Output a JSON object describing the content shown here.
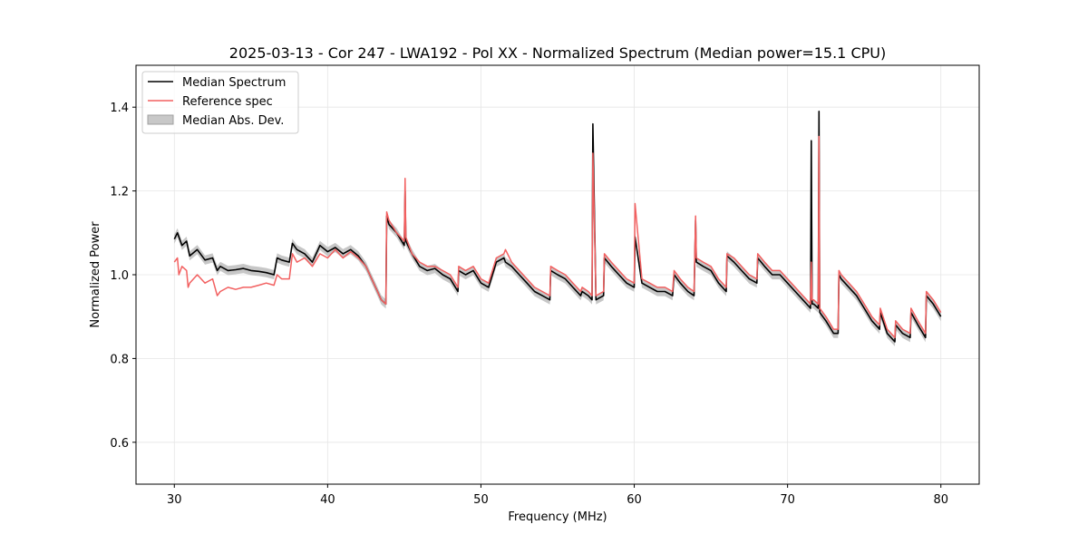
{
  "chart_data": {
    "type": "line",
    "title": "2025-03-13 - Cor 247 - LWA192 - Pol XX - Normalized Spectrum (Median power=15.1 CPU)",
    "xlabel": "Frequency (MHz)",
    "ylabel": "Normalized Power",
    "xlim": [
      27.5,
      82.5
    ],
    "ylim": [
      0.5,
      1.5
    ],
    "xticks": [
      30,
      40,
      50,
      60,
      70,
      80
    ],
    "yticks": [
      0.6,
      0.8,
      1.0,
      1.2,
      1.4
    ],
    "xtick_labels": [
      "30",
      "40",
      "50",
      "60",
      "70",
      "80"
    ],
    "ytick_labels": [
      "0.6",
      "0.8",
      "1.0",
      "1.2",
      "1.4"
    ],
    "grid": true,
    "legend_position": "top-left",
    "colors": {
      "median": "#000000",
      "reference": "#f26060",
      "mad_fill": "#bdbdbd"
    },
    "legend": [
      {
        "label": "Median Spectrum",
        "kind": "line",
        "color": "#000000"
      },
      {
        "label": "Reference spec",
        "kind": "line",
        "color": "#f26060"
      },
      {
        "label": "Median Abs. Dev.",
        "kind": "patch",
        "color": "#c8c8c8"
      }
    ],
    "mad": 0.011,
    "series": [
      {
        "name": "Median Spectrum",
        "x": [
          30.0,
          30.2,
          30.5,
          30.8,
          31.0,
          31.5,
          32.0,
          32.5,
          32.8,
          33.0,
          33.5,
          34.0,
          34.5,
          35.0,
          35.5,
          36.0,
          36.5,
          36.7,
          37.0,
          37.5,
          37.7,
          38.0,
          38.5,
          39.0,
          39.5,
          40.0,
          40.5,
          41.0,
          41.5,
          42.0,
          42.5,
          43.0,
          43.5,
          43.8,
          43.85,
          44.0,
          44.5,
          45.0,
          45.05,
          45.1,
          45.5,
          46.0,
          46.5,
          47.0,
          47.5,
          48.0,
          48.5,
          48.55,
          49.0,
          49.5,
          50.0,
          50.5,
          51.0,
          51.5,
          51.6,
          52.0,
          52.5,
          53.0,
          53.5,
          54.0,
          54.5,
          54.55,
          55.0,
          55.5,
          56.0,
          56.5,
          56.6,
          57.0,
          57.25,
          57.3,
          57.5,
          58.0,
          58.05,
          58.5,
          59.0,
          59.5,
          60.0,
          60.05,
          60.5,
          61.0,
          61.5,
          62.0,
          62.5,
          62.6,
          63.0,
          63.5,
          63.9,
          64.0,
          64.05,
          64.5,
          65.0,
          65.5,
          66.0,
          66.05,
          66.5,
          67.0,
          67.5,
          68.0,
          68.05,
          68.5,
          69.0,
          69.5,
          70.0,
          70.5,
          71.0,
          71.5,
          71.55,
          71.6,
          71.7,
          72.0,
          72.05,
          72.1,
          72.5,
          73.0,
          73.3,
          73.35,
          73.5,
          74.0,
          74.5,
          75.0,
          75.5,
          76.0,
          76.05,
          76.5,
          77.0,
          77.05,
          77.5,
          78.0,
          78.05,
          78.5,
          79.0,
          79.05,
          79.5,
          80.0
        ],
        "y": [
          1.085,
          1.1,
          1.07,
          1.08,
          1.045,
          1.06,
          1.035,
          1.04,
          1.01,
          1.02,
          1.01,
          1.012,
          1.015,
          1.01,
          1.008,
          1.005,
          1.0,
          1.04,
          1.035,
          1.03,
          1.075,
          1.06,
          1.05,
          1.03,
          1.07,
          1.055,
          1.065,
          1.05,
          1.06,
          1.045,
          1.02,
          0.98,
          0.94,
          0.93,
          1.14,
          1.12,
          1.1,
          1.07,
          1.2,
          1.08,
          1.05,
          1.02,
          1.01,
          1.015,
          1.0,
          0.99,
          0.96,
          1.01,
          1.0,
          1.01,
          0.98,
          0.97,
          1.03,
          1.04,
          1.03,
          1.02,
          1.0,
          0.98,
          0.96,
          0.95,
          0.94,
          1.01,
          1.0,
          0.99,
          0.97,
          0.95,
          0.96,
          0.95,
          0.94,
          1.36,
          0.94,
          0.95,
          1.04,
          1.02,
          1.0,
          0.98,
          0.97,
          1.09,
          0.98,
          0.97,
          0.96,
          0.96,
          0.95,
          1.0,
          0.98,
          0.96,
          0.95,
          1.13,
          1.03,
          1.02,
          1.01,
          0.98,
          0.96,
          1.045,
          1.03,
          1.01,
          0.99,
          0.98,
          1.04,
          1.02,
          1.0,
          1.0,
          0.98,
          0.96,
          0.94,
          0.92,
          1.32,
          0.93,
          0.93,
          0.92,
          1.39,
          0.91,
          0.89,
          0.86,
          0.86,
          1.0,
          0.99,
          0.97,
          0.95,
          0.92,
          0.89,
          0.87,
          0.91,
          0.86,
          0.84,
          0.88,
          0.86,
          0.85,
          0.91,
          0.88,
          0.85,
          0.95,
          0.93,
          0.9
        ]
      },
      {
        "name": "Reference spec",
        "x": [
          30.0,
          30.2,
          30.3,
          30.5,
          30.8,
          30.9,
          31.0,
          31.5,
          32.0,
          32.5,
          32.8,
          33.0,
          33.5,
          34.0,
          34.5,
          35.0,
          35.5,
          36.0,
          36.5,
          36.7,
          37.0,
          37.5,
          37.7,
          38.0,
          38.5,
          39.0,
          39.5,
          40.0,
          40.5,
          41.0,
          41.5,
          42.0,
          42.5,
          43.0,
          43.5,
          43.8,
          43.85,
          44.0,
          44.5,
          45.0,
          45.05,
          45.1,
          45.5,
          46.0,
          46.5,
          47.0,
          47.5,
          48.0,
          48.5,
          48.55,
          49.0,
          49.5,
          50.0,
          50.5,
          51.0,
          51.5,
          51.6,
          52.0,
          52.5,
          53.0,
          53.5,
          54.0,
          54.5,
          54.55,
          55.0,
          55.5,
          56.0,
          56.5,
          56.6,
          57.0,
          57.25,
          57.3,
          57.5,
          58.0,
          58.05,
          58.5,
          59.0,
          59.5,
          60.0,
          60.05,
          60.5,
          61.0,
          61.5,
          62.0,
          62.5,
          62.6,
          63.0,
          63.5,
          63.9,
          64.0,
          64.05,
          64.5,
          65.0,
          65.5,
          66.0,
          66.05,
          66.5,
          67.0,
          67.5,
          68.0,
          68.05,
          68.5,
          69.0,
          69.5,
          70.0,
          70.5,
          71.0,
          71.5,
          71.55,
          71.6,
          71.7,
          72.0,
          72.05,
          72.1,
          72.5,
          73.0,
          73.3,
          73.35,
          73.5,
          74.0,
          74.5,
          75.0,
          75.5,
          76.0,
          76.05,
          76.5,
          77.0,
          77.05,
          77.5,
          78.0,
          78.05,
          78.5,
          79.0,
          79.05,
          79.5,
          80.0
        ],
        "y": [
          1.03,
          1.04,
          1.0,
          1.02,
          1.01,
          0.97,
          0.98,
          1.0,
          0.98,
          0.99,
          0.95,
          0.96,
          0.97,
          0.965,
          0.97,
          0.97,
          0.975,
          0.98,
          0.975,
          1.0,
          0.99,
          0.99,
          1.05,
          1.03,
          1.04,
          1.02,
          1.05,
          1.04,
          1.06,
          1.04,
          1.055,
          1.04,
          1.02,
          0.98,
          0.94,
          0.93,
          1.15,
          1.13,
          1.1,
          1.08,
          1.23,
          1.09,
          1.05,
          1.03,
          1.02,
          1.02,
          1.01,
          1.0,
          0.97,
          1.02,
          1.01,
          1.02,
          0.99,
          0.98,
          1.04,
          1.05,
          1.06,
          1.03,
          1.01,
          0.99,
          0.97,
          0.96,
          0.95,
          1.02,
          1.01,
          1.0,
          0.98,
          0.96,
          0.97,
          0.96,
          0.95,
          1.29,
          0.95,
          0.96,
          1.05,
          1.03,
          1.01,
          0.99,
          0.98,
          1.17,
          0.99,
          0.98,
          0.97,
          0.97,
          0.96,
          1.01,
          0.99,
          0.97,
          0.96,
          1.14,
          1.04,
          1.03,
          1.02,
          0.99,
          0.97,
          1.05,
          1.04,
          1.02,
          1.0,
          0.99,
          1.05,
          1.03,
          1.01,
          1.01,
          0.99,
          0.97,
          0.95,
          0.93,
          1.03,
          0.94,
          0.94,
          0.93,
          1.33,
          0.92,
          0.9,
          0.87,
          0.87,
          1.01,
          1.0,
          0.98,
          0.96,
          0.93,
          0.9,
          0.88,
          0.92,
          0.87,
          0.85,
          0.89,
          0.87,
          0.86,
          0.92,
          0.89,
          0.86,
          0.96,
          0.94,
          0.91
        ]
      }
    ]
  }
}
